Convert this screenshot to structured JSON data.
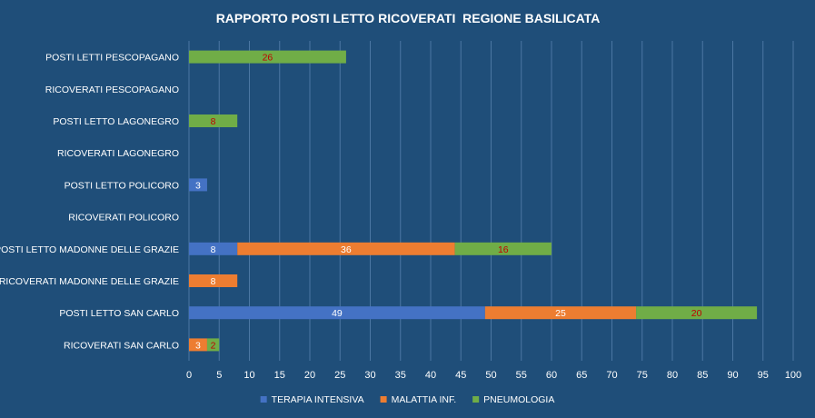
{
  "chart_data": {
    "type": "bar",
    "orientation": "horizontal",
    "stacked": true,
    "title": "RAPPORTO POSTI LETTO RICOVERATI  REGIONE BASILICATA",
    "categories": [
      "POSTI LETTI PESCOPAGANO",
      "RICOVERATI PESCOPAGANO",
      "POSTI LETTO LAGONEGRO",
      "RICOVERATI LAGONEGRO",
      "POSTI LETTO POLICORO",
      "RICOVERATI POLICORO",
      "POSTI LETTO MADONNE DELLE GRAZIE",
      "RICOVERATI MADONNE DELLE GRAZIE",
      "POSTI LETTO SAN CARLO",
      "RICOVERATI SAN CARLO"
    ],
    "series": [
      {
        "name": "TERAPIA INTENSIVA",
        "color": "#4472c4",
        "label_color": "#ffffff",
        "values": [
          0,
          0,
          0,
          0,
          3,
          0,
          8,
          0,
          49,
          0
        ]
      },
      {
        "name": "MALATTIA INF.",
        "color": "#ed7d31",
        "label_color": "#ffffff",
        "values": [
          0,
          0,
          0,
          0,
          0,
          0,
          36,
          8,
          25,
          3
        ]
      },
      {
        "name": "PNEUMOLOGIA",
        "color": "#70ad47",
        "label_color": "#c00000",
        "values": [
          26,
          0,
          8,
          0,
          0,
          0,
          16,
          0,
          20,
          2
        ]
      }
    ],
    "xlim": [
      0,
      100
    ],
    "xticks": [
      "0",
      "5",
      "10",
      "15",
      "20",
      "25",
      "30",
      "35",
      "40",
      "45",
      "50",
      "55",
      "60",
      "65",
      "70",
      "75",
      "80",
      "85",
      "90",
      "95",
      "100"
    ],
    "grid": true,
    "legend_position": "bottom"
  }
}
